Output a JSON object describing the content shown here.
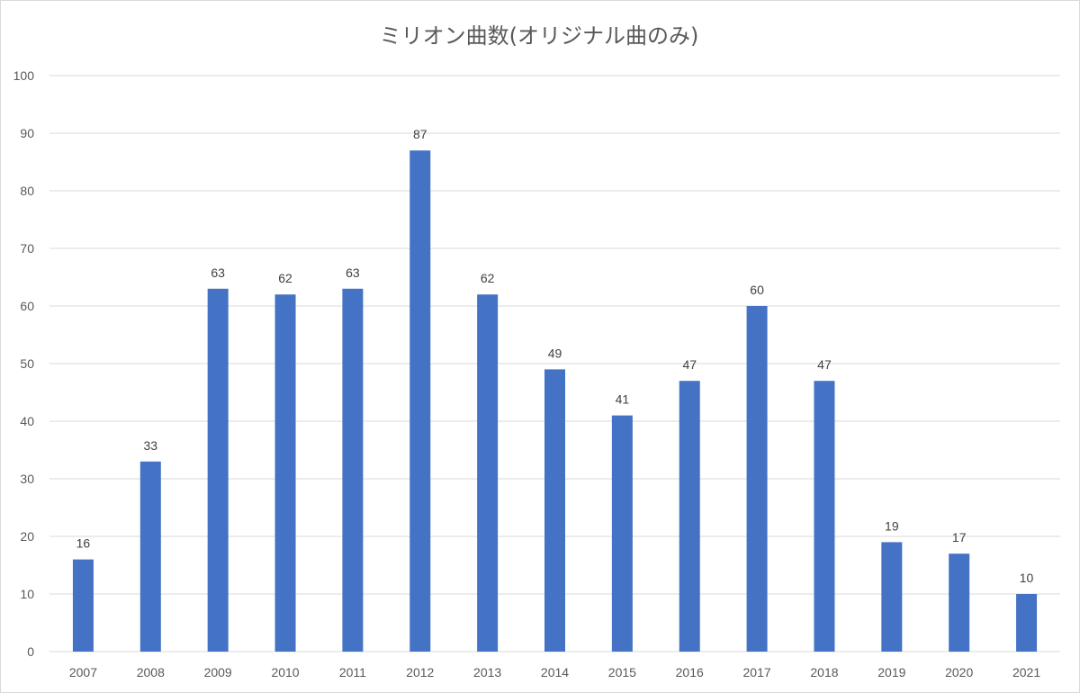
{
  "chart_data": {
    "type": "bar",
    "title": "ミリオン曲数(オリジナル曲のみ)",
    "categories": [
      "2007",
      "2008",
      "2009",
      "2010",
      "2011",
      "2012",
      "2013",
      "2014",
      "2015",
      "2016",
      "2017",
      "2018",
      "2019",
      "2020",
      "2021"
    ],
    "values": [
      16,
      33,
      63,
      62,
      63,
      87,
      62,
      49,
      41,
      47,
      60,
      47,
      19,
      17,
      10
    ],
    "xlabel": "",
    "ylabel": "",
    "ylim": [
      0,
      100
    ],
    "yticks": [
      0,
      10,
      20,
      30,
      40,
      50,
      60,
      70,
      80,
      90,
      100
    ],
    "grid": true,
    "legend": "none",
    "bar_color": "#4472c4",
    "grid_color": "#d9d9d9",
    "data_labels": true
  }
}
